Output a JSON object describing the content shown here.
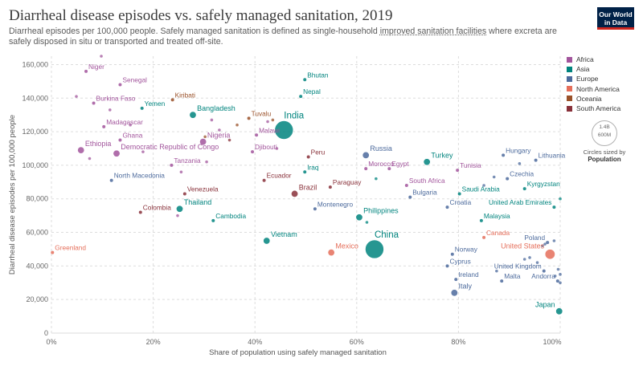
{
  "header": {
    "title": "Diarrheal disease episodes vs. safely managed sanitation, 2019",
    "subtitle_part1": "Diarrheal episodes per 100,000 people. Safely managed sanitation is defined as single-household ",
    "subtitle_link": "improved sanitation facilities",
    "subtitle_part2": " where excreta are safely disposed in situ or transported and treated off-site.",
    "logo_line1": "Our World",
    "logo_line2": "in Data"
  },
  "legend": {
    "items": [
      {
        "label": "Africa",
        "color": "#a2559c"
      },
      {
        "label": "Asia",
        "color": "#00847e"
      },
      {
        "label": "Europe",
        "color": "#4c6a9c"
      },
      {
        "label": "North America",
        "color": "#e56e5a"
      },
      {
        "label": "Oceania",
        "color": "#9a5129"
      },
      {
        "label": "South America",
        "color": "#883039"
      }
    ],
    "size_label_big": "1.4B",
    "size_label_small": "600M",
    "size_caption": "Circles sized by",
    "size_caption_bold": "Population"
  },
  "chart_data": {
    "type": "scatter",
    "xlabel": "Share of population using safely managed sanitation",
    "ylabel": "Diarrheal disease episodes per 100,000 people",
    "xlim": [
      0,
      100
    ],
    "ylim": [
      0,
      165000
    ],
    "x_ticks": [
      0,
      20,
      40,
      60,
      80,
      100
    ],
    "x_tick_labels": [
      "0%",
      "20%",
      "40%",
      "60%",
      "80%",
      "100%"
    ],
    "y_ticks": [
      0,
      20000,
      40000,
      60000,
      80000,
      100000,
      120000,
      140000,
      160000
    ],
    "y_tick_labels": [
      "0",
      "20,000",
      "40,000",
      "60,000",
      "80,000",
      "100,000",
      "120,000",
      "140,000",
      "160,000"
    ],
    "grid": "y",
    "legend_position": "right",
    "colors": {
      "Africa": "#a2559c",
      "Asia": "#00847e",
      "Europe": "#4c6a9c",
      "North America": "#e56e5a",
      "Oceania": "#9a5129",
      "South America": "#883039"
    },
    "points": [
      {
        "label": "Niger",
        "region": "Africa",
        "x": 6.8,
        "y": 156000,
        "size": "s"
      },
      {
        "label": "Senegal",
        "region": "Africa",
        "x": 13.5,
        "y": 148000,
        "size": "s"
      },
      {
        "label": "Burkina Faso",
        "region": "Africa",
        "x": 8.3,
        "y": 137000,
        "size": "s"
      },
      {
        "label": "Madagascar",
        "region": "Africa",
        "x": 10.3,
        "y": 123000,
        "size": "s"
      },
      {
        "label": "Ghana",
        "region": "Africa",
        "x": 13.5,
        "y": 115000,
        "size": "s"
      },
      {
        "label": "Ethiopia",
        "region": "Africa",
        "x": 5.8,
        "y": 109000,
        "size": "m"
      },
      {
        "label": "Democratic Republic of Congo",
        "region": "Africa",
        "x": 12.8,
        "y": 107000,
        "size": "m"
      },
      {
        "label": "Nigeria",
        "region": "Africa",
        "x": 29.8,
        "y": 114000,
        "size": "m"
      },
      {
        "label": "Tanzania",
        "region": "Africa",
        "x": 23.6,
        "y": 100000,
        "size": "s"
      },
      {
        "label": "Djibouti",
        "region": "Africa",
        "x": 39.5,
        "y": 108000,
        "size": "s"
      },
      {
        "label": "Malawi",
        "region": "Africa",
        "x": 40.3,
        "y": 118000,
        "size": "s"
      },
      {
        "label": "Morocco",
        "region": "Africa",
        "x": 61.8,
        "y": 98000,
        "size": "s"
      },
      {
        "label": "Egypt",
        "region": "Africa",
        "x": 66.4,
        "y": 98000,
        "size": "s"
      },
      {
        "label": "South Africa",
        "region": "Africa",
        "x": 69.8,
        "y": 88000,
        "size": "s"
      },
      {
        "label": "Tunisia",
        "region": "Africa",
        "x": 79.8,
        "y": 97000,
        "size": "s"
      },
      {
        "label": "Bhutan",
        "region": "Asia",
        "x": 49.8,
        "y": 151000,
        "size": "s"
      },
      {
        "label": "Nepal",
        "region": "Asia",
        "x": 49.0,
        "y": 141000,
        "size": "s"
      },
      {
        "label": "Yemen",
        "region": "Asia",
        "x": 17.8,
        "y": 134000,
        "size": "s"
      },
      {
        "label": "Bangladesh",
        "region": "Asia",
        "x": 27.8,
        "y": 130000,
        "size": "m"
      },
      {
        "label": "India",
        "region": "Asia",
        "x": 45.7,
        "y": 121000,
        "size": "xl"
      },
      {
        "label": "Iraq",
        "region": "Asia",
        "x": 49.8,
        "y": 96000,
        "size": "s"
      },
      {
        "label": "Turkey",
        "region": "Asia",
        "x": 73.8,
        "y": 102000,
        "size": "m"
      },
      {
        "label": "Saudi Arabia",
        "region": "Asia",
        "x": 80.2,
        "y": 83000,
        "size": "s"
      },
      {
        "label": "Malaysia",
        "region": "Asia",
        "x": 84.5,
        "y": 67000,
        "size": "s"
      },
      {
        "label": "Thailand",
        "region": "Asia",
        "x": 25.2,
        "y": 74000,
        "size": "m"
      },
      {
        "label": "Cambodia",
        "region": "Asia",
        "x": 31.8,
        "y": 67000,
        "size": "s"
      },
      {
        "label": "Philippines",
        "region": "Asia",
        "x": 60.5,
        "y": 69000,
        "size": "m"
      },
      {
        "label": "Vietnam",
        "region": "Asia",
        "x": 42.3,
        "y": 55000,
        "size": "m"
      },
      {
        "label": "China",
        "region": "Asia",
        "x": 63.5,
        "y": 50000,
        "size": "xl"
      },
      {
        "label": "Kyrgyzstan",
        "region": "Asia",
        "x": 93.0,
        "y": 86000,
        "size": "s"
      },
      {
        "label": "United Arab Emirates",
        "region": "Asia",
        "x": 98.8,
        "y": 75000,
        "size": "s"
      },
      {
        "label": "Japan",
        "region": "Asia",
        "x": 99.8,
        "y": 13000,
        "size": "m"
      },
      {
        "label": "Russia",
        "region": "Europe",
        "x": 61.8,
        "y": 106000,
        "size": "m"
      },
      {
        "label": "Bulgaria",
        "region": "Europe",
        "x": 70.5,
        "y": 81000,
        "size": "s"
      },
      {
        "label": "Croatia",
        "region": "Europe",
        "x": 77.8,
        "y": 75000,
        "size": "s"
      },
      {
        "label": "Montenegro",
        "region": "Europe",
        "x": 51.8,
        "y": 74000,
        "size": "s"
      },
      {
        "label": "North Macedonia",
        "region": "Europe",
        "x": 11.8,
        "y": 91000,
        "size": "s"
      },
      {
        "label": "Hungary",
        "region": "Europe",
        "x": 88.8,
        "y": 106000,
        "size": "s"
      },
      {
        "label": "Lithuania",
        "region": "Europe",
        "x": 95.2,
        "y": 103000,
        "size": "s"
      },
      {
        "label": "Czechia",
        "region": "Europe",
        "x": 89.6,
        "y": 92000,
        "size": "s"
      },
      {
        "label": "Poland",
        "region": "Europe",
        "x": 97.5,
        "y": 54000,
        "size": "s"
      },
      {
        "label": "Norway",
        "region": "Europe",
        "x": 78.8,
        "y": 47000,
        "size": "s"
      },
      {
        "label": "Cyprus",
        "region": "Europe",
        "x": 77.8,
        "y": 40000,
        "size": "s"
      },
      {
        "label": "United Kingdom",
        "region": "Europe",
        "x": 96.8,
        "y": 37000,
        "size": "s"
      },
      {
        "label": "Ireland",
        "region": "Europe",
        "x": 79.5,
        "y": 32000,
        "size": "s"
      },
      {
        "label": "Malta",
        "region": "Europe",
        "x": 88.5,
        "y": 31000,
        "size": "s"
      },
      {
        "label": "Andorra",
        "region": "Europe",
        "x": 99.5,
        "y": 31000,
        "size": "s"
      },
      {
        "label": "Italy",
        "region": "Europe",
        "x": 79.2,
        "y": 24000,
        "size": "m"
      },
      {
        "label": "Greenland",
        "region": "North America",
        "x": 0.2,
        "y": 48000,
        "size": "s"
      },
      {
        "label": "Mexico",
        "region": "North America",
        "x": 55.0,
        "y": 48000,
        "size": "m"
      },
      {
        "label": "Canada",
        "region": "North America",
        "x": 85.0,
        "y": 57000,
        "size": "s"
      },
      {
        "label": "United States",
        "region": "North America",
        "x": 98.0,
        "y": 47000,
        "size": "l"
      },
      {
        "label": "Kiribati",
        "region": "Oceania",
        "x": 23.8,
        "y": 139000,
        "size": "s"
      },
      {
        "label": "Tuvalu",
        "region": "Oceania",
        "x": 38.8,
        "y": 128000,
        "size": "s"
      },
      {
        "label": "Peru",
        "region": "South America",
        "x": 50.5,
        "y": 105000,
        "size": "s"
      },
      {
        "label": "Ecuador",
        "region": "South America",
        "x": 41.8,
        "y": 91000,
        "size": "s"
      },
      {
        "label": "Brazil",
        "region": "South America",
        "x": 47.8,
        "y": 83000,
        "size": "m"
      },
      {
        "label": "Paraguay",
        "region": "South America",
        "x": 54.8,
        "y": 87000,
        "size": "s"
      },
      {
        "label": "Venezuela",
        "region": "South America",
        "x": 26.2,
        "y": 83000,
        "size": "s"
      },
      {
        "label": "Colombia",
        "region": "South America",
        "x": 17.5,
        "y": 72000,
        "size": "s"
      }
    ],
    "unlabeled_points": [
      {
        "region": "Africa",
        "x": 9.8,
        "y": 165000
      },
      {
        "region": "Africa",
        "x": 4.9,
        "y": 141000
      },
      {
        "region": "Africa",
        "x": 11.5,
        "y": 133000
      },
      {
        "region": "Africa",
        "x": 15.5,
        "y": 124000
      },
      {
        "region": "Africa",
        "x": 18.0,
        "y": 108000
      },
      {
        "region": "Africa",
        "x": 30.5,
        "y": 102000
      },
      {
        "region": "Africa",
        "x": 25.5,
        "y": 96000
      },
      {
        "region": "Africa",
        "x": 31.5,
        "y": 127000
      },
      {
        "region": "Africa",
        "x": 33.0,
        "y": 121000
      },
      {
        "region": "Africa",
        "x": 42.5,
        "y": 126000
      },
      {
        "region": "Africa",
        "x": 44.3,
        "y": 110000
      },
      {
        "region": "Africa",
        "x": 24.8,
        "y": 70000
      },
      {
        "region": "Africa",
        "x": 7.5,
        "y": 104000
      },
      {
        "region": "Asia",
        "x": 63.8,
        "y": 92000
      },
      {
        "region": "Asia",
        "x": 100,
        "y": 80000
      },
      {
        "region": "Asia",
        "x": 62.0,
        "y": 66000
      },
      {
        "region": "Europe",
        "x": 87.0,
        "y": 93000
      },
      {
        "region": "Europe",
        "x": 92.0,
        "y": 101000
      },
      {
        "region": "Europe",
        "x": 97.0,
        "y": 53000
      },
      {
        "region": "Europe",
        "x": 98.8,
        "y": 55000
      },
      {
        "region": "Europe",
        "x": 99.6,
        "y": 38000
      },
      {
        "region": "Europe",
        "x": 93.0,
        "y": 44000
      },
      {
        "region": "Europe",
        "x": 100,
        "y": 30000
      },
      {
        "region": "Europe",
        "x": 95.5,
        "y": 42000
      },
      {
        "region": "Europe",
        "x": 87.5,
        "y": 37000
      },
      {
        "region": "Europe",
        "x": 99.0,
        "y": 34000
      },
      {
        "region": "Europe",
        "x": 94.0,
        "y": 45000
      },
      {
        "region": "Europe",
        "x": 96.5,
        "y": 52000
      },
      {
        "region": "Europe",
        "x": 85.0,
        "y": 88000
      },
      {
        "region": "Europe",
        "x": 100,
        "y": 35000
      },
      {
        "region": "Oceania",
        "x": 36.5,
        "y": 124000
      },
      {
        "region": "Oceania",
        "x": 43.5,
        "y": 127000
      },
      {
        "region": "Oceania",
        "x": 30.2,
        "y": 117000
      },
      {
        "region": "South America",
        "x": 35.0,
        "y": 115000
      }
    ]
  }
}
